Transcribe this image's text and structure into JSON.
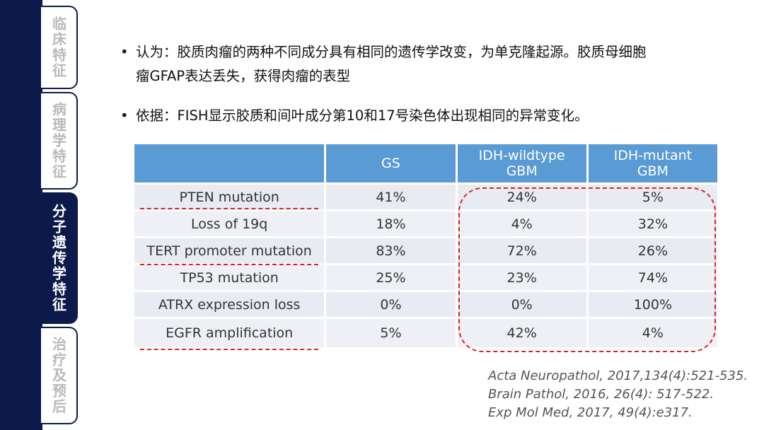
{
  "sidebar": {
    "tabs": [
      {
        "label": "临床特征"
      },
      {
        "label": "病理学特征"
      },
      {
        "label": "分子遗传学特征"
      },
      {
        "label": "治疗及预后"
      }
    ]
  },
  "bullets": [
    {
      "symbol": "•",
      "text": "认为：胶质肉瘤的两种不同成分具有相同的遗传学改变，为单克隆起源。胶质母细胞\n瘤GFAP表达丢失，获得肉瘤的表型"
    },
    {
      "symbol": "•",
      "text": "依据：FISH显示胶质和间叶成分第10和17号染色体出现相同的异常变化。"
    }
  ],
  "table": {
    "headers": [
      "",
      "GS",
      "IDH-wildtype\nGBM",
      "IDH-mutant\nGBM"
    ],
    "rows": [
      [
        "PTEN mutation",
        "41%",
        "24%",
        "5%"
      ],
      [
        "Loss of 19q",
        "18%",
        "4%",
        "32%"
      ],
      [
        "TERT promoter mutation",
        "83%",
        "72%",
        "26%"
      ],
      [
        "TP53 mutation",
        "25%",
        "23%",
        "74%"
      ],
      [
        "ATRX expression loss",
        "0%",
        "0%",
        "100%"
      ],
      [
        "EGFR amplification",
        "5%",
        "42%",
        "4%"
      ]
    ]
  },
  "references": [
    "Acta Neuropathol, 2017,134(4):521-535.",
    "Brain Pathol, 2016, 26(4): 517-522.",
    "Exp Mol Med, 2017, 49(4):e317."
  ],
  "colors": {
    "sidebar_navy": "#0b1a4a",
    "table_header": "#5b9bd5",
    "highlight_red": "#e02020"
  }
}
